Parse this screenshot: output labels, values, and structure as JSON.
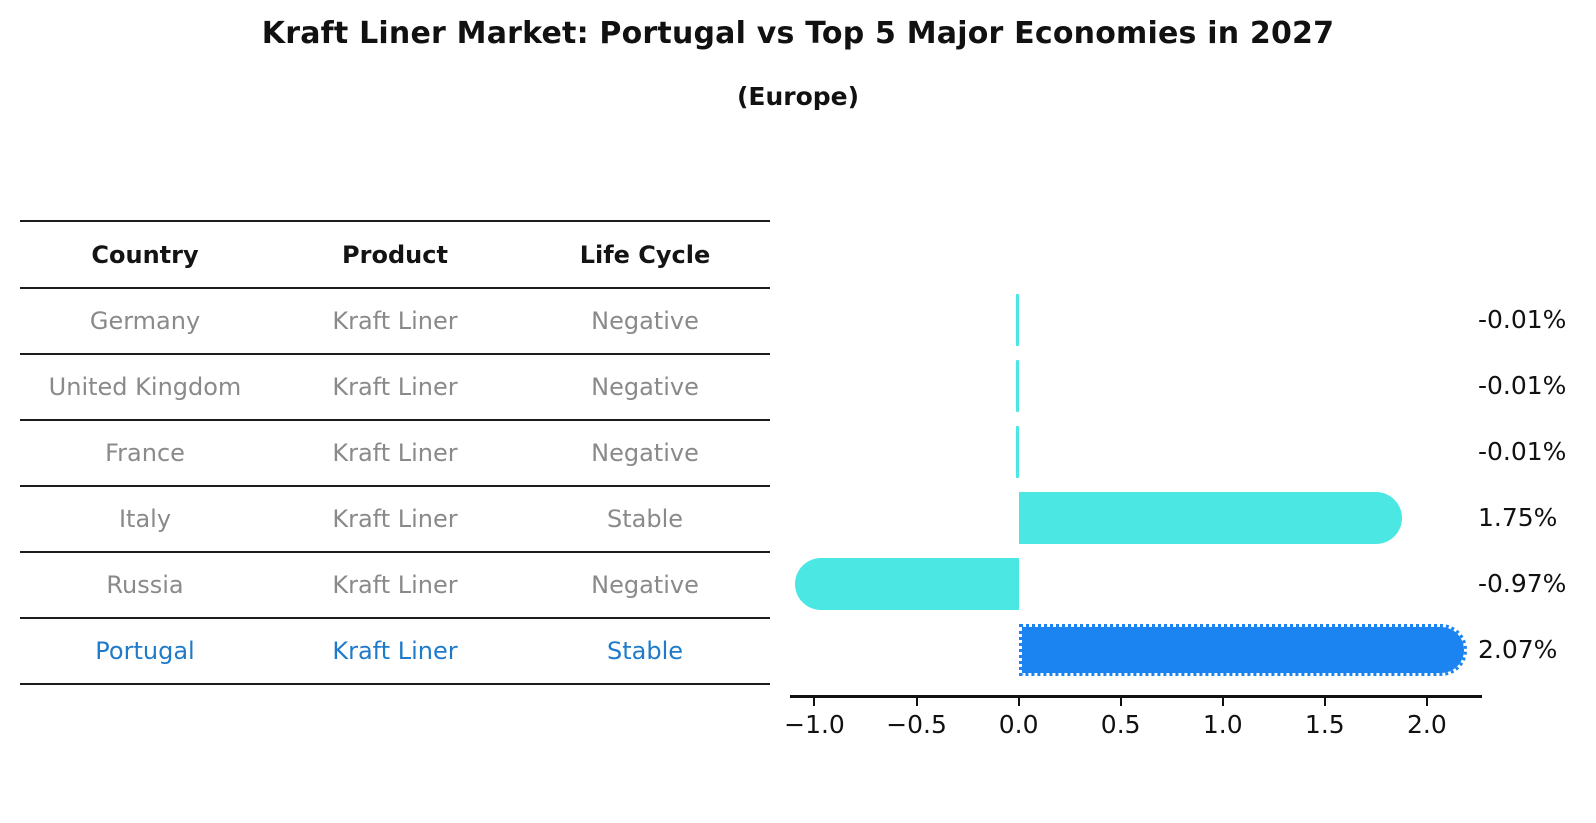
{
  "chart_data": {
    "type": "bar",
    "orientation": "horizontal",
    "title": "Kraft Liner Market: Portugal vs Top 5 Major Economies in 2027",
    "subtitle": "(Europe)",
    "categories": [
      "Germany",
      "United Kingdom",
      "France",
      "Italy",
      "Russia",
      "Portugal"
    ],
    "values": [
      -0.01,
      -0.01,
      -0.01,
      1.75,
      -0.97,
      2.07
    ],
    "value_labels": [
      "-0.01%",
      "-0.01%",
      "-0.01%",
      "1.75%",
      "-0.97%",
      "2.07%"
    ],
    "highlight_category": "Portugal",
    "xlim": [
      -1.12,
      2.27
    ],
    "x_tick_values": [
      -1.0,
      -0.5,
      0.0,
      0.5,
      1.0,
      1.5,
      2.0
    ],
    "x_tick_labels": [
      "−1.0",
      "−0.5",
      "0.0",
      "0.5",
      "1.0",
      "1.5",
      "2.0"
    ],
    "grid": false,
    "legend_position": "none",
    "colors": {
      "bar_default": "#4be8e3",
      "bar_highlight": "#1b84f0",
      "row_text": "#8a8a8a",
      "highlight_text": "#1f7bc9",
      "header_text": "#141414",
      "value_label_text": "#111111",
      "axis": "#111111"
    }
  },
  "table": {
    "columns": [
      "Country",
      "Product",
      "Life Cycle"
    ],
    "rows": [
      {
        "country": "Germany",
        "product": "Kraft Liner",
        "life_cycle": "Negative",
        "highlight": false
      },
      {
        "country": "United Kingdom",
        "product": "Kraft Liner",
        "life_cycle": "Negative",
        "highlight": false
      },
      {
        "country": "France",
        "product": "Kraft Liner",
        "life_cycle": "Negative",
        "highlight": false
      },
      {
        "country": "Italy",
        "product": "Kraft Liner",
        "life_cycle": "Stable",
        "highlight": false
      },
      {
        "country": "Russia",
        "product": "Kraft Liner",
        "life_cycle": "Negative",
        "highlight": false
      },
      {
        "country": "Portugal",
        "product": "Kraft Liner",
        "life_cycle": "Stable",
        "highlight": true
      }
    ]
  }
}
